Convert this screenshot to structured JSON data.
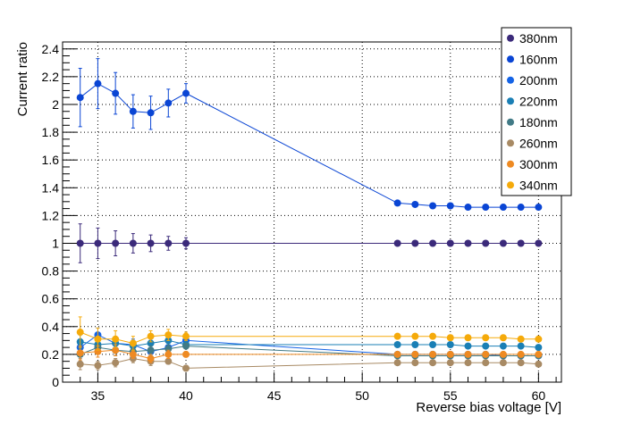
{
  "chart_data": {
    "type": "line",
    "xlabel": "Reverse bias voltage [V]",
    "ylabel": "Current ratio",
    "xlim": [
      33,
      61.3
    ],
    "ylim": [
      0,
      2.45
    ],
    "xticks_major": [
      35,
      40,
      45,
      50,
      55,
      60
    ],
    "xticks_minor_step": 1,
    "yticks_major": [
      0,
      0.2,
      0.4,
      0.6,
      0.8,
      1,
      1.2,
      1.4,
      1.6,
      1.8,
      2,
      2.2,
      2.4
    ],
    "ytick_labels": [
      "0",
      "0.2",
      "0.4",
      "0.6",
      "0.8",
      "1",
      "1.2",
      "1.4",
      "1.6",
      "1.8",
      "2",
      "2.2",
      "2.4"
    ],
    "yticks_minor_step": 0.05,
    "grid": true,
    "legend_position": "top-right",
    "x": [
      34,
      35,
      36,
      37,
      38,
      39,
      40,
      52,
      53,
      54,
      55,
      56,
      57,
      58,
      59,
      60
    ],
    "series": [
      {
        "name": "380nm",
        "color": "#3b2a7a",
        "values": [
          1.0,
          1.0,
          1.0,
          1.0,
          1.0,
          1.0,
          1.0,
          1.0,
          1.0,
          1.0,
          1.0,
          1.0,
          1.0,
          1.0,
          1.0,
          1.0
        ],
        "errors": [
          0.14,
          0.11,
          0.09,
          0.07,
          0.06,
          0.05,
          0.04,
          0.01,
          0.01,
          0.01,
          0.01,
          0.01,
          0.01,
          0.01,
          0.01,
          0.01
        ]
      },
      {
        "name": "160nm",
        "color": "#0a45d4",
        "values": [
          2.05,
          2.15,
          2.08,
          1.95,
          1.94,
          2.01,
          2.08,
          1.29,
          1.28,
          1.27,
          1.27,
          1.26,
          1.26,
          1.26,
          1.26,
          1.26
        ],
        "errors": [
          0.21,
          0.18,
          0.15,
          0.12,
          0.12,
          0.1,
          0.07,
          0.01,
          0.01,
          0.01,
          0.01,
          0.01,
          0.01,
          0.01,
          0.01,
          0.01
        ]
      },
      {
        "name": "200nm",
        "color": "#1463e6",
        "values": [
          0.25,
          0.34,
          0.28,
          0.27,
          0.22,
          0.25,
          0.3,
          0.2,
          0.2,
          0.2,
          0.2,
          0.2,
          0.2,
          0.19,
          0.19,
          0.19
        ],
        "errors": [
          0.06,
          0.05,
          0.04,
          0.04,
          0.03,
          0.03,
          0.02,
          0.01,
          0.01,
          0.01,
          0.01,
          0.01,
          0.01,
          0.01,
          0.01,
          0.01
        ]
      },
      {
        "name": "220nm",
        "color": "#1a7fb5",
        "values": [
          0.29,
          0.27,
          0.28,
          0.26,
          0.28,
          0.3,
          0.27,
          0.27,
          0.27,
          0.27,
          0.27,
          0.26,
          0.26,
          0.26,
          0.26,
          0.25
        ],
        "errors": [
          0.05,
          0.05,
          0.04,
          0.04,
          0.03,
          0.03,
          0.02,
          0.01,
          0.01,
          0.01,
          0.01,
          0.01,
          0.01,
          0.01,
          0.01,
          0.01
        ]
      },
      {
        "name": "180nm",
        "color": "#417a86",
        "values": [
          0.2,
          0.25,
          0.23,
          0.22,
          0.23,
          0.24,
          0.26,
          0.19,
          0.19,
          0.19,
          0.19,
          0.19,
          0.19,
          0.19,
          0.19,
          0.19
        ],
        "errors": [
          0.05,
          0.05,
          0.04,
          0.04,
          0.03,
          0.03,
          0.02,
          0.01,
          0.01,
          0.01,
          0.01,
          0.01,
          0.01,
          0.01,
          0.01,
          0.01
        ]
      },
      {
        "name": "260nm",
        "color": "#a88a64",
        "values": [
          0.13,
          0.12,
          0.14,
          0.17,
          0.15,
          0.15,
          0.1,
          0.14,
          0.14,
          0.14,
          0.14,
          0.14,
          0.14,
          0.14,
          0.14,
          0.13
        ],
        "errors": [
          0.04,
          0.03,
          0.03,
          0.03,
          0.03,
          0.02,
          0.02,
          0.01,
          0.01,
          0.01,
          0.01,
          0.01,
          0.01,
          0.01,
          0.01,
          0.01
        ]
      },
      {
        "name": "300nm",
        "color": "#ee8a22",
        "values": [
          0.21,
          0.22,
          0.23,
          0.2,
          0.17,
          0.2,
          0.2,
          0.2,
          0.2,
          0.2,
          0.2,
          0.2,
          0.2,
          0.2,
          0.2,
          0.2
        ],
        "errors": [
          0.05,
          0.04,
          0.04,
          0.03,
          0.03,
          0.03,
          0.02,
          0.01,
          0.01,
          0.01,
          0.01,
          0.01,
          0.01,
          0.01,
          0.01,
          0.01
        ]
      },
      {
        "name": "340nm",
        "color": "#f5aa0a",
        "values": [
          0.36,
          0.31,
          0.31,
          0.28,
          0.33,
          0.34,
          0.33,
          0.33,
          0.33,
          0.33,
          0.32,
          0.32,
          0.32,
          0.32,
          0.31,
          0.31
        ],
        "errors": [
          0.11,
          0.08,
          0.06,
          0.05,
          0.04,
          0.04,
          0.03,
          0.01,
          0.01,
          0.01,
          0.01,
          0.01,
          0.01,
          0.01,
          0.01,
          0.01
        ]
      }
    ]
  }
}
